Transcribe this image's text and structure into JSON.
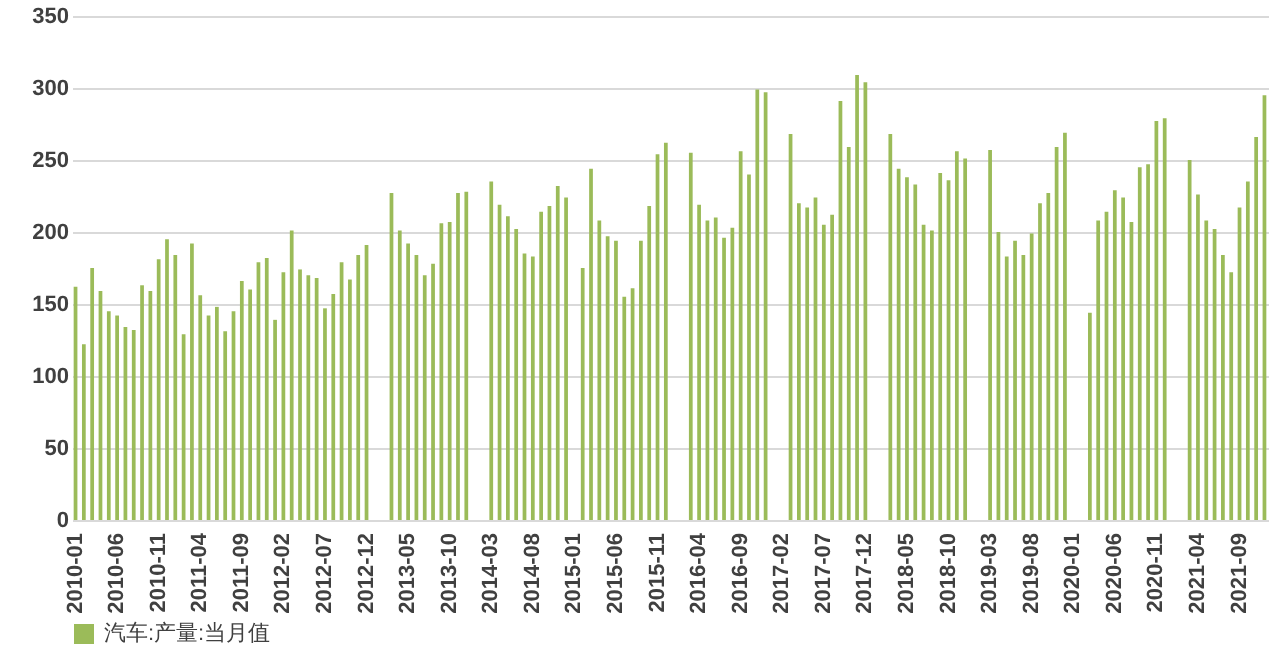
{
  "chart_data": {
    "type": "bar",
    "categories": [
      "2010-01",
      null,
      null,
      null,
      null,
      "2010-06",
      null,
      null,
      null,
      null,
      "2010-11",
      null,
      null,
      null,
      null,
      "2011-04",
      null,
      null,
      null,
      null,
      "2011-09",
      null,
      null,
      null,
      null,
      "2012-02",
      null,
      null,
      null,
      null,
      "2012-07",
      null,
      null,
      null,
      null,
      "2012-12",
      null,
      null,
      null,
      null,
      "2013-05",
      null,
      null,
      null,
      null,
      "2013-10",
      null,
      null,
      null,
      null,
      "2014-03",
      null,
      null,
      null,
      null,
      "2014-08",
      null,
      null,
      null,
      null,
      "2015-01",
      null,
      null,
      null,
      null,
      "2015-06",
      null,
      null,
      null,
      null,
      "2015-11",
      null,
      null,
      null,
      null,
      "2016-04",
      null,
      null,
      null,
      null,
      "2016-09",
      null,
      null,
      null,
      null,
      "2017-02",
      null,
      null,
      null,
      null,
      "2017-07",
      null,
      null,
      null,
      null,
      "2017-12",
      null,
      null,
      null,
      null,
      "2018-05",
      null,
      null,
      null,
      null,
      "2018-10",
      null,
      null,
      null,
      null,
      "2019-03",
      null,
      null,
      null,
      null,
      "2019-08",
      null,
      null,
      null,
      null,
      "2020-01",
      null,
      null,
      null,
      null,
      "2020-06",
      null,
      null,
      null,
      null,
      "2020-11",
      null,
      null,
      null,
      null,
      "2021-04",
      null,
      null,
      null,
      null,
      "2021-09",
      null,
      null,
      null
    ],
    "series": [
      {
        "name": "汽车:产量:当月值",
        "color": "#9bbb59",
        "values": [
          162,
          122,
          175,
          159,
          145,
          142,
          134,
          132,
          163,
          159,
          181,
          195,
          184,
          129,
          192,
          156,
          142,
          148,
          131,
          145,
          166,
          160,
          179,
          182,
          139,
          172,
          201,
          174,
          170,
          168,
          147,
          157,
          179,
          167,
          184,
          191,
          null,
          null,
          227,
          201,
          192,
          184,
          170,
          178,
          206,
          207,
          227,
          228,
          null,
          null,
          235,
          219,
          211,
          202,
          185,
          183,
          214,
          218,
          232,
          224,
          null,
          175,
          244,
          208,
          197,
          194,
          155,
          161,
          194,
          218,
          254,
          262,
          null,
          null,
          255,
          219,
          208,
          210,
          196,
          203,
          256,
          240,
          299,
          297,
          null,
          null,
          268,
          220,
          217,
          224,
          205,
          212,
          291,
          259,
          309,
          304,
          null,
          null,
          268,
          244,
          238,
          233,
          205,
          201,
          241,
          236,
          256,
          251,
          null,
          null,
          257,
          200,
          183,
          194,
          184,
          199,
          220,
          227,
          259,
          269,
          null,
          null,
          144,
          208,
          214,
          229,
          224,
          207,
          245,
          247,
          277,
          279,
          null,
          null,
          250,
          226,
          208,
          202,
          184,
          172,
          217,
          235,
          266,
          295
        ]
      }
    ],
    "ylim": [
      0,
      350
    ],
    "yticks": [
      0,
      50,
      100,
      150,
      200,
      250,
      300,
      350
    ],
    "grid": "y",
    "legend": "bottom"
  }
}
